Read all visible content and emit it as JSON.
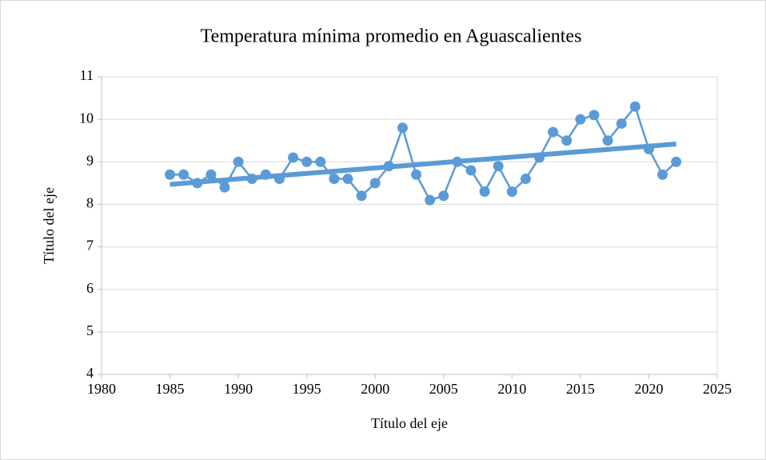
{
  "chart_data": {
    "type": "line",
    "title": "Temperatura mínima promedio en Aguascalientes",
    "xlabel": "Título del eje",
    "ylabel": "Título del eje",
    "x": [
      1985,
      1986,
      1987,
      1988,
      1989,
      1990,
      1991,
      1992,
      1993,
      1994,
      1995,
      1996,
      1997,
      1998,
      1999,
      2000,
      2001,
      2002,
      2003,
      2004,
      2005,
      2006,
      2007,
      2008,
      2009,
      2010,
      2011,
      2012,
      2013,
      2014,
      2015,
      2016,
      2017,
      2018,
      2019,
      2020,
      2021,
      2022
    ],
    "series": [
      {
        "color": "#5b9bd5",
        "values": [
          8.7,
          8.7,
          8.5,
          8.7,
          8.4,
          9.0,
          8.6,
          8.7,
          8.6,
          9.1,
          9.0,
          9.0,
          8.6,
          8.6,
          8.2,
          8.5,
          8.9,
          9.8,
          8.7,
          8.1,
          8.2,
          9.0,
          8.8,
          8.3,
          8.9,
          8.3,
          8.6,
          9.1,
          9.7,
          9.5,
          10.0,
          10.1,
          9.5,
          9.9,
          10.3,
          9.3,
          8.7,
          9.0
        ]
      }
    ],
    "trendline": {
      "color": "#5b9bd5",
      "x": [
        1985,
        2022
      ],
      "values": [
        8.47,
        9.42
      ]
    },
    "xlim": [
      1980,
      2025
    ],
    "xticks": [
      1980,
      1985,
      1990,
      1995,
      2000,
      2005,
      2010,
      2015,
      2020,
      2025
    ],
    "ylim": [
      4,
      11
    ],
    "yticks": [
      4,
      5,
      6,
      7,
      8,
      9,
      10,
      11
    ],
    "grid": true
  }
}
